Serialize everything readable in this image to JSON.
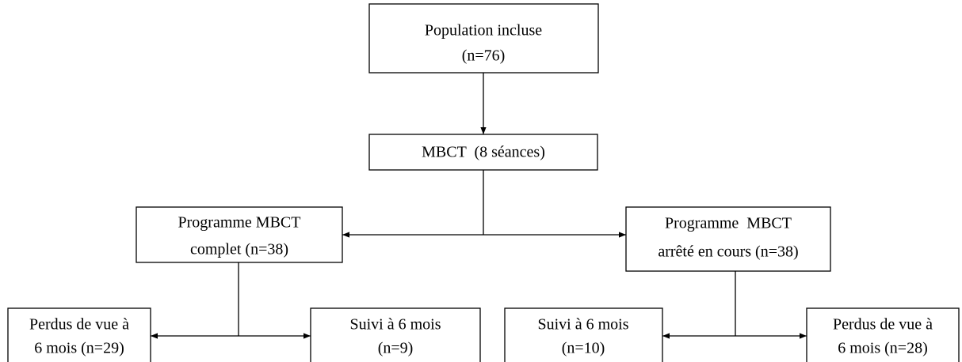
{
  "nodes": [
    {
      "lines": [
        "Population incluse",
        "(n=76)"
      ]
    },
    {
      "lines": [
        "MBCT  (8 séances)"
      ]
    },
    {
      "lines": [
        "Programme MBCT",
        "complet (n=38)"
      ]
    },
    {
      "lines": [
        "Programme  MBCT",
        "arrêté en cours (n=38)"
      ]
    },
    {
      "lines": [
        "Perdus de vue à",
        "6 mois (n=29)"
      ]
    },
    {
      "lines": [
        "Suivi à 6 mois",
        "(n=9)"
      ]
    },
    {
      "lines": [
        "Suivi à 6 mois",
        "(n=10)"
      ]
    },
    {
      "lines": [
        "Perdus de vue à",
        "6 mois (n=28)"
      ]
    }
  ]
}
